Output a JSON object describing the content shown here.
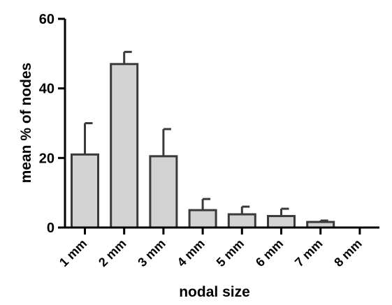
{
  "chart_data": {
    "type": "bar",
    "categories": [
      "1 mm",
      "2 mm",
      "3 mm",
      "4 mm",
      "5 mm",
      "6 mm",
      "7 mm",
      "8 mm"
    ],
    "values": [
      21,
      47,
      20.5,
      5,
      3.8,
      3.3,
      1.6,
      0
    ],
    "error_upper": [
      30,
      50.5,
      28.3,
      8.2,
      6,
      5.4,
      2,
      0
    ],
    "xlabel": "nodal size",
    "ylabel": "mean %  of nodes",
    "ylim": [
      0,
      60
    ],
    "yticks": [
      0,
      20,
      40,
      60
    ],
    "bar_fill": "#d3d3d3",
    "bar_stroke": "#3a3a3a",
    "grid": false
  }
}
